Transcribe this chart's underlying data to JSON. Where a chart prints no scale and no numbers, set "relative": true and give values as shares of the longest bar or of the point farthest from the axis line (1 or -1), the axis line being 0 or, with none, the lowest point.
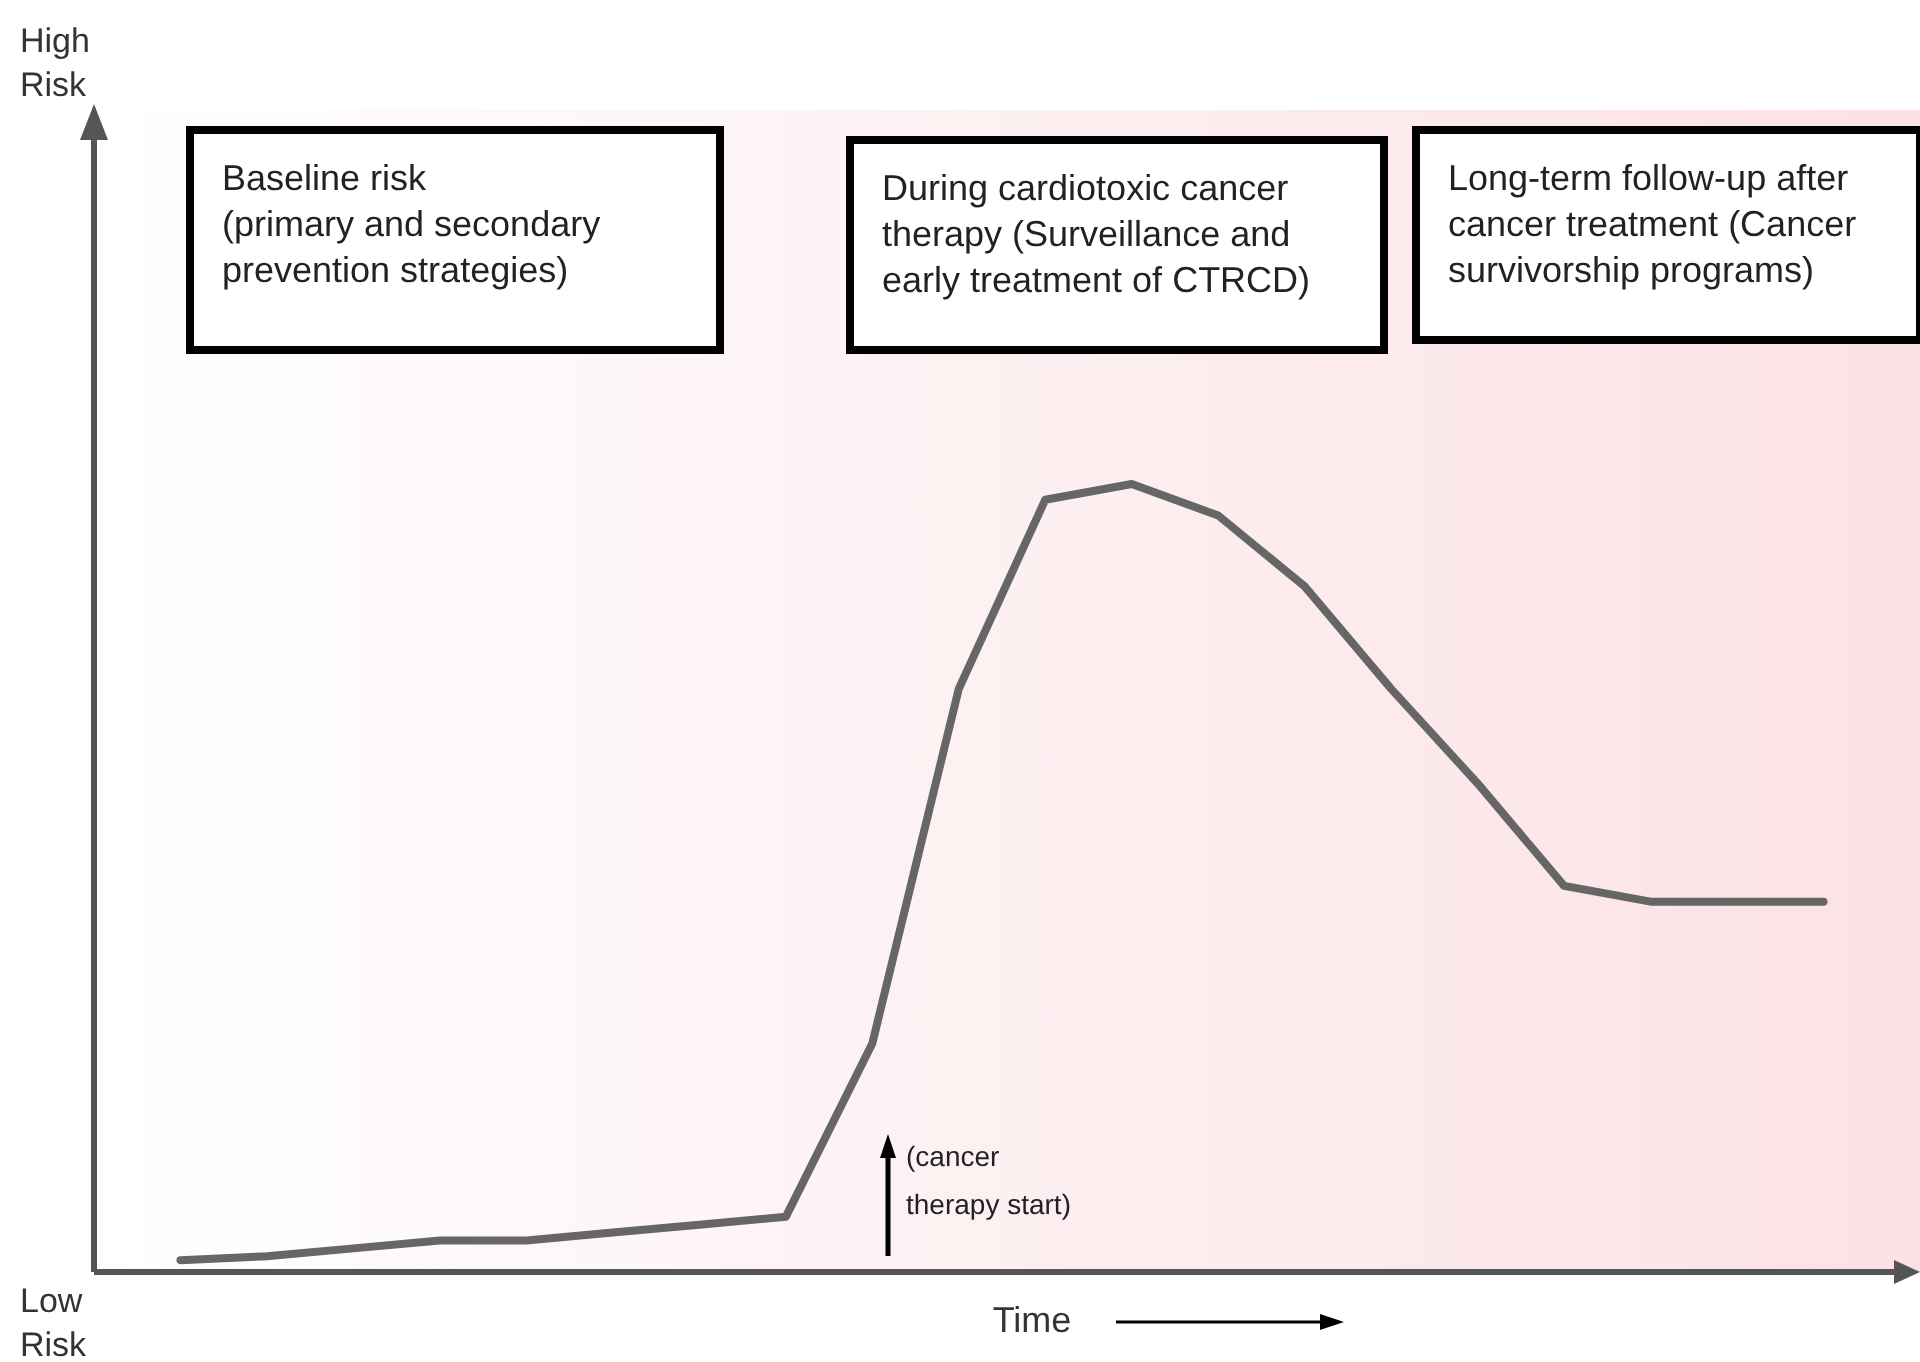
{
  "chart_data": {
    "type": "line",
    "xlabel": "Time",
    "relative": true,
    "marker": "none",
    "line_style": "solid",
    "categories": [
      null,
      null,
      null,
      null,
      null,
      null,
      null,
      null,
      null,
      null,
      null,
      null,
      null,
      null,
      null,
      null,
      null,
      null,
      null,
      null
    ],
    "series": [
      {
        "color": "#666666",
        "values": [
          0.015,
          0.02,
          0.03,
          0.04,
          0.04,
          0.05,
          0.06,
          0.07,
          0.29,
          0.74,
          0.98,
          1,
          0.96,
          0.87,
          0.74,
          0.62,
          0.49,
          0.47,
          0.47,
          0.47
        ]
      }
    ],
    "annotations": [
      "Baseline risk\n(primary and secondary\nprevention strategies)",
      "During cardiotoxic cancer\ntherapy (Surveillance and\nearly treatment of CTRCD)",
      "Long-term follow-up after\ncancer treatment (Cancer\nsurvivorship programs)",
      "(cancer\ntherapy start)",
      "High\nRisk",
      "Low\nRisk"
    ]
  }
}
